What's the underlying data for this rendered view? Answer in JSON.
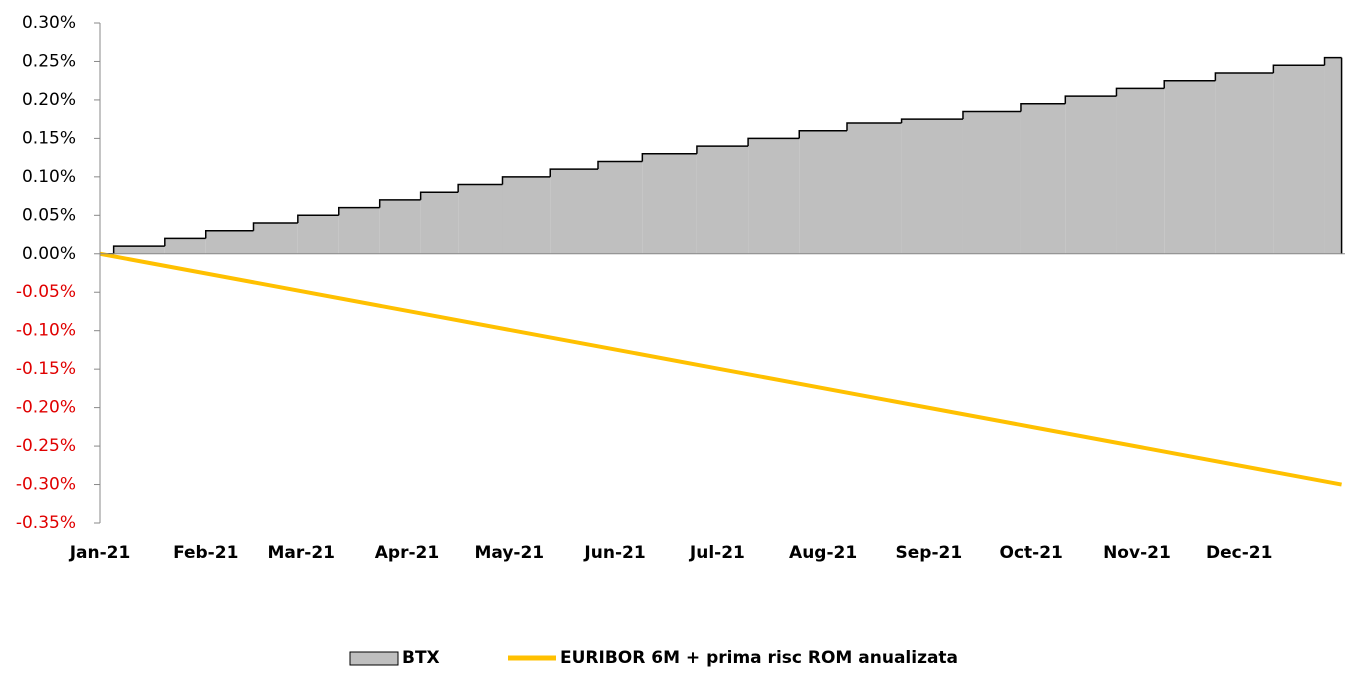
{
  "chart_data": {
    "type": "step-area-line",
    "xlim": [
      0,
      365
    ],
    "xticks": [
      {
        "value": 0,
        "label": "Jan-21"
      },
      {
        "value": 31,
        "label": "Feb-21"
      },
      {
        "value": 59,
        "label": "Mar-21"
      },
      {
        "value": 90,
        "label": "Apr-21"
      },
      {
        "value": 120,
        "label": "May-21"
      },
      {
        "value": 151,
        "label": "Jun-21"
      },
      {
        "value": 181,
        "label": "Jul-21"
      },
      {
        "value": 212,
        "label": "Aug-21"
      },
      {
        "value": 243,
        "label": "Sep-21"
      },
      {
        "value": 273,
        "label": "Oct-21"
      },
      {
        "value": 304,
        "label": "Nov-21"
      },
      {
        "value": 334,
        "label": "Dec-21"
      }
    ],
    "ylim": [
      -0.35,
      0.3
    ],
    "yticks": [
      {
        "value": 0.3,
        "label": "0.30%"
      },
      {
        "value": 0.25,
        "label": "0.25%"
      },
      {
        "value": 0.2,
        "label": "0.20%"
      },
      {
        "value": 0.15,
        "label": "0.15%"
      },
      {
        "value": 0.1,
        "label": "0.10%"
      },
      {
        "value": 0.05,
        "label": "0.05%"
      },
      {
        "value": 0,
        "label": "0.00%"
      },
      {
        "value": -0.05,
        "label": "-0.05%"
      },
      {
        "value": -0.1,
        "label": "-0.10%"
      },
      {
        "value": -0.15,
        "label": "-0.15%"
      },
      {
        "value": -0.2,
        "label": "-0.20%"
      },
      {
        "value": -0.25,
        "label": "-0.25%"
      },
      {
        "value": -0.3,
        "label": "-0.30%"
      },
      {
        "value": -0.35,
        "label": "-0.35%"
      }
    ],
    "negative_tick_color": "#e00000",
    "legend": "bottom",
    "series": [
      {
        "name": "BTX",
        "kind": "step-area",
        "color": "#bfbfbf",
        "x": [
          0,
          4,
          19,
          31,
          45,
          58,
          70,
          82,
          94,
          105,
          118,
          132,
          146,
          159,
          175,
          190,
          205,
          219,
          235,
          253,
          270,
          283,
          298,
          312,
          327,
          344,
          359,
          364
        ],
        "values": [
          0,
          0.01,
          0.02,
          0.03,
          0.04,
          0.05,
          0.06,
          0.07,
          0.08,
          0.09,
          0.1,
          0.11,
          0.12,
          0.13,
          0.14,
          0.15,
          0.16,
          0.17,
          0.175,
          0.185,
          0.195,
          0.205,
          0.215,
          0.225,
          0.235,
          0.245,
          0.255,
          0.255
        ]
      },
      {
        "name": "EURIBOR 6M + prima risc ROM anualizata",
        "kind": "line",
        "color": "#ffc000",
        "x": [
          0,
          91,
          182,
          273,
          364
        ],
        "values": [
          0,
          -0.075,
          -0.15,
          -0.225,
          -0.3
        ]
      }
    ]
  }
}
